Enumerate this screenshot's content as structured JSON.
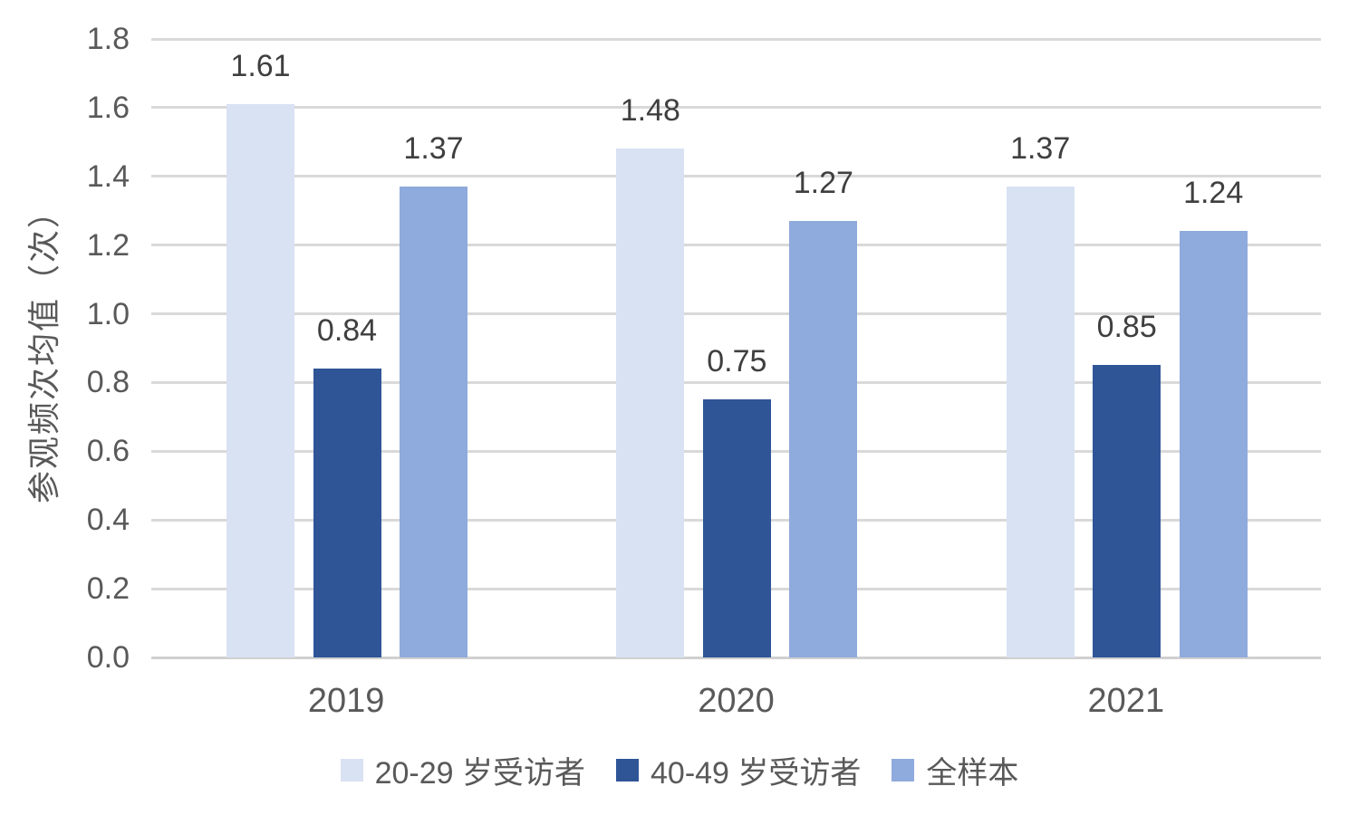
{
  "chart_data": {
    "type": "bar",
    "title": "",
    "ylabel": "参观频次均值（次）",
    "xlabel": "",
    "categories": [
      "2019",
      "2020",
      "2021"
    ],
    "series": [
      {
        "name": "20-29 岁受访者",
        "color": "#d9e2f3",
        "values": [
          1.61,
          1.48,
          1.37
        ]
      },
      {
        "name": "40-49 岁受访者",
        "color": "#2f5597",
        "values": [
          0.84,
          0.75,
          0.85
        ]
      },
      {
        "name": "全样本",
        "color": "#8faadc",
        "values": [
          1.37,
          1.27,
          1.24
        ]
      }
    ],
    "ylim": [
      0.0,
      1.8
    ],
    "ytick_step": 0.2,
    "grid": true,
    "value_labels": true,
    "legend_position": "bottom",
    "colors": {
      "gridline": "#d9d9d9",
      "axis_line": "#d0d0d0",
      "tick_text": "#595959",
      "value_text": "#3f3f3f",
      "category_text": "#595959",
      "legend_text": "#595959"
    }
  }
}
